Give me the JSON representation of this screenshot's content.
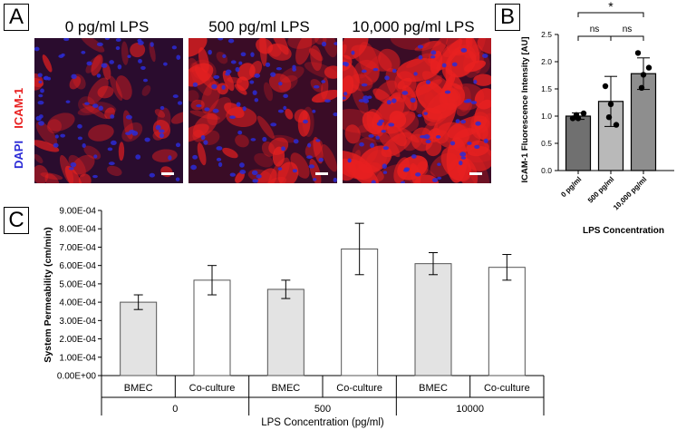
{
  "panels": {
    "a": "A",
    "b": "B",
    "c": "C"
  },
  "panel_a": {
    "stain_labels": {
      "dapi": "DAPI",
      "icam": "ICAM-1"
    },
    "colors": {
      "dapi": "#2b2bd6",
      "icam": "#e82020"
    },
    "images": [
      {
        "title": "0 pg/ml LPS",
        "intensity": 0.25
      },
      {
        "title": "500 pg/ml LPS",
        "intensity": 0.45
      },
      {
        "title": "10,000 pg/ml LPS",
        "intensity": 0.85
      }
    ]
  },
  "chart_data": [
    {
      "type": "bar",
      "ylabel": "ICAM-1 Fluorescence Intensity [AU]",
      "xlabel": "LPS Concentration",
      "categories": [
        "0 pg/ml",
        "500 pg/ml",
        "10,000 pg/ml"
      ],
      "values": [
        1.0,
        1.27,
        1.78
      ],
      "errors": [
        0.06,
        0.46,
        0.29
      ],
      "points": [
        [
          0.96,
          1.02,
          1.05,
          0.96
        ],
        [
          1.55,
          0.98,
          0.84,
          1.22
        ],
        [
          2.16,
          1.52,
          1.89,
          1.76
        ]
      ],
      "bar_colors": [
        "#707070",
        "#b9b9b9",
        "#8e8e8e"
      ],
      "ylim": [
        0,
        2.5
      ],
      "yticks": [
        "0.0",
        "0.5",
        "1.0",
        "1.5",
        "2.0",
        "2.5"
      ],
      "significance": [
        {
          "from": 0,
          "to": 1,
          "label": "ns"
        },
        {
          "from": 1,
          "to": 2,
          "label": "ns"
        },
        {
          "from": 0,
          "to": 2,
          "label": "*"
        }
      ]
    },
    {
      "type": "bar",
      "ylabel": "System Permeability (cm/min)",
      "xlabel": "LPS Concentration (pg/ml)",
      "groups": [
        "0",
        "500",
        "10000"
      ],
      "series": [
        {
          "name": "BMEC",
          "values": [
            0.0004,
            0.00047,
            0.00061
          ],
          "errors": [
            4e-05,
            5e-05,
            6e-05
          ],
          "color": "#e3e3e3"
        },
        {
          "name": "Co-culture",
          "values": [
            0.00052,
            0.00069,
            0.00059
          ],
          "errors": [
            8e-05,
            0.00014,
            7e-05
          ],
          "color": "#ffffff"
        }
      ],
      "ylim": [
        0,
        0.0009
      ],
      "yticks": [
        "0.00E+00",
        "1.00E-04",
        "2.00E-04",
        "3.00E-04",
        "4.00E-04",
        "5.00E-04",
        "6.00E-04",
        "7.00E-04",
        "8.00E-04",
        "9.00E-04"
      ]
    }
  ]
}
